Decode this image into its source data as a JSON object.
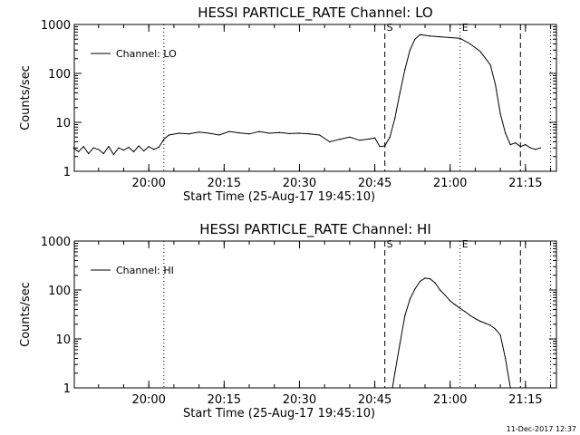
{
  "footer": {
    "timestamp": "11-Dec-2017 12:37"
  },
  "chart_data": [
    {
      "type": "line",
      "title": "HESSI PARTICLE_RATE Channel: LO",
      "xlabel": "Start Time (25-Aug-17 19:45:10)",
      "ylabel": "Counts/sec",
      "yscale": "log",
      "ylim": [
        1,
        1000
      ],
      "xlim_minutes_after_start": [
        0,
        96
      ],
      "yticks": [
        "1",
        "10",
        "100",
        "1000"
      ],
      "xticks": [
        "20:00",
        "20:15",
        "20:30",
        "20:45",
        "21:00",
        "21:15"
      ],
      "legend": {
        "position": "top-left",
        "entries": [
          "Channel: LO"
        ]
      },
      "grid": false,
      "vlines": [
        {
          "time": "20:03",
          "style": "dotted",
          "label": ""
        },
        {
          "time": "20:47",
          "style": "dashed",
          "label": "S"
        },
        {
          "time": "21:02",
          "style": "dotted",
          "label": "E"
        },
        {
          "time": "21:14",
          "style": "dashed",
          "label": ""
        },
        {
          "time": "21:20",
          "style": "dotted",
          "label": ""
        }
      ],
      "series": [
        {
          "name": "Channel: LO",
          "x": [
            "19:45",
            "19:46",
            "19:47",
            "19:48",
            "19:49",
            "19:50",
            "19:51",
            "19:52",
            "19:53",
            "19:54",
            "19:55",
            "19:56",
            "19:57",
            "19:58",
            "19:59",
            "20:00",
            "20:01",
            "20:02",
            "20:03",
            "20:04",
            "20:06",
            "20:08",
            "20:10",
            "20:12",
            "20:14",
            "20:16",
            "20:18",
            "20:20",
            "20:22",
            "20:24",
            "20:26",
            "20:28",
            "20:30",
            "20:32",
            "20:34",
            "20:36",
            "20:38",
            "20:40",
            "20:42",
            "20:44",
            "20:45",
            "20:46",
            "20:47",
            "20:48",
            "20:49",
            "20:50",
            "20:51",
            "20:52",
            "20:53",
            "20:54",
            "20:55",
            "20:56",
            "20:58",
            "21:00",
            "21:02",
            "21:04",
            "21:06",
            "21:08",
            "21:09",
            "21:10",
            "21:11",
            "21:12",
            "21:13",
            "21:14",
            "21:15",
            "21:16",
            "21:17",
            "21:18"
          ],
          "y": [
            3,
            2.5,
            3.2,
            2.3,
            3,
            2.8,
            2.3,
            3.2,
            2.2,
            3,
            2.7,
            3.1,
            2.5,
            3.3,
            2.6,
            3.2,
            2.8,
            3.1,
            4.5,
            5.5,
            6,
            5.8,
            6.3,
            6,
            5.5,
            6.5,
            6.1,
            5.8,
            6.5,
            6,
            6.2,
            5.9,
            6,
            5.8,
            5.5,
            4,
            4.5,
            5,
            4.3,
            4.6,
            4.8,
            3.2,
            3.3,
            5,
            12,
            40,
            120,
            300,
            500,
            620,
            600,
            580,
            560,
            540,
            520,
            400,
            280,
            150,
            60,
            15,
            6,
            3.5,
            3.8,
            3.2,
            3.5,
            3,
            2.8,
            3
          ]
        }
      ]
    },
    {
      "type": "line",
      "title": "HESSI PARTICLE_RATE Channel: HI",
      "xlabel": "Start Time (25-Aug-17 19:45:10)",
      "ylabel": "Counts/sec",
      "yscale": "log",
      "ylim": [
        1,
        1000
      ],
      "xlim_minutes_after_start": [
        0,
        96
      ],
      "yticks": [
        "1",
        "10",
        "100",
        "1000"
      ],
      "xticks": [
        "20:00",
        "20:15",
        "20:30",
        "20:45",
        "21:00",
        "21:15"
      ],
      "legend": {
        "position": "top-left",
        "entries": [
          "Channel: HI"
        ]
      },
      "grid": false,
      "vlines": [
        {
          "time": "20:03",
          "style": "dotted",
          "label": ""
        },
        {
          "time": "20:47",
          "style": "dashed",
          "label": "S"
        },
        {
          "time": "21:02",
          "style": "dotted",
          "label": "E"
        },
        {
          "time": "21:14",
          "style": "dashed",
          "label": ""
        },
        {
          "time": "21:20",
          "style": "dotted",
          "label": ""
        }
      ],
      "series": [
        {
          "name": "Channel: HI",
          "x": [
            "20:48.5",
            "20:49",
            "20:50",
            "20:51",
            "20:52",
            "20:53",
            "20:54",
            "20:55",
            "20:56",
            "20:57",
            "20:58",
            "20:59",
            "21:00",
            "21:01",
            "21:02",
            "21:03",
            "21:04",
            "21:05",
            "21:06",
            "21:07",
            "21:08",
            "21:09",
            "21:10",
            "21:11",
            "21:12"
          ],
          "y": [
            1,
            2,
            8,
            30,
            65,
            105,
            150,
            175,
            170,
            140,
            100,
            78,
            60,
            50,
            42,
            36,
            30,
            26,
            23,
            21,
            19,
            16,
            12,
            4,
            1
          ]
        }
      ]
    }
  ]
}
